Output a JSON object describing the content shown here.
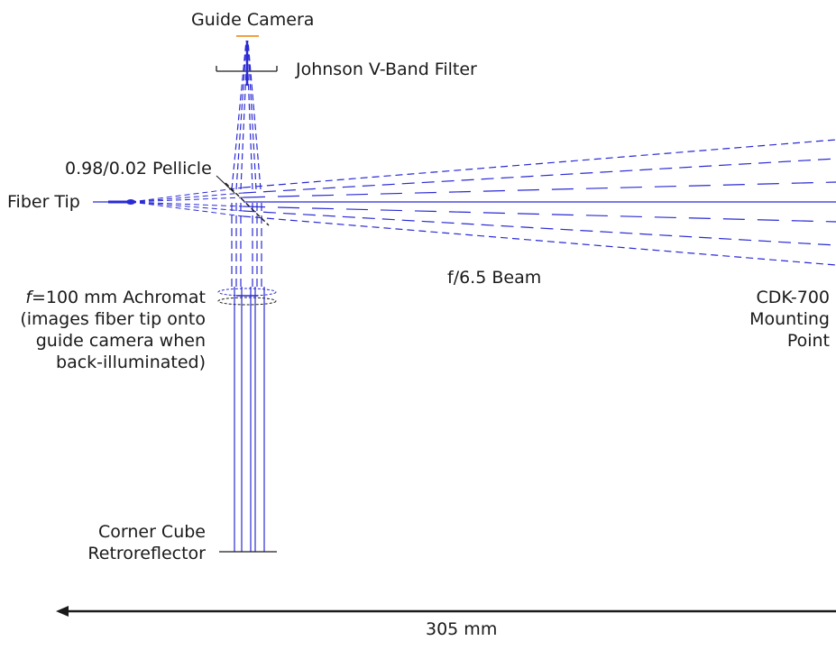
{
  "labels": {
    "guide_camera": "Guide Camera",
    "filter": "Johnson V-Band Filter",
    "pellicle": "0.98/0.02 Pellicle",
    "fiber_tip": "Fiber Tip",
    "beam": "f/6.5 Beam",
    "achromat_f": "f",
    "achromat_rest": "=100 mm Achromat",
    "achromat_line2": "(images fiber tip onto",
    "achromat_line3": "guide camera when",
    "achromat_line4": "back-illuminated)",
    "mount_line1": "CDK-700",
    "mount_line2": "Mounting",
    "mount_line3": "Point",
    "cube_line1": "Corner Cube",
    "cube_line2": "Retroreflector",
    "distance": "305 mm"
  },
  "colors": {
    "ray": "#2a2ad6",
    "camera": "#f0a040",
    "ink": "#1a1a1a"
  }
}
